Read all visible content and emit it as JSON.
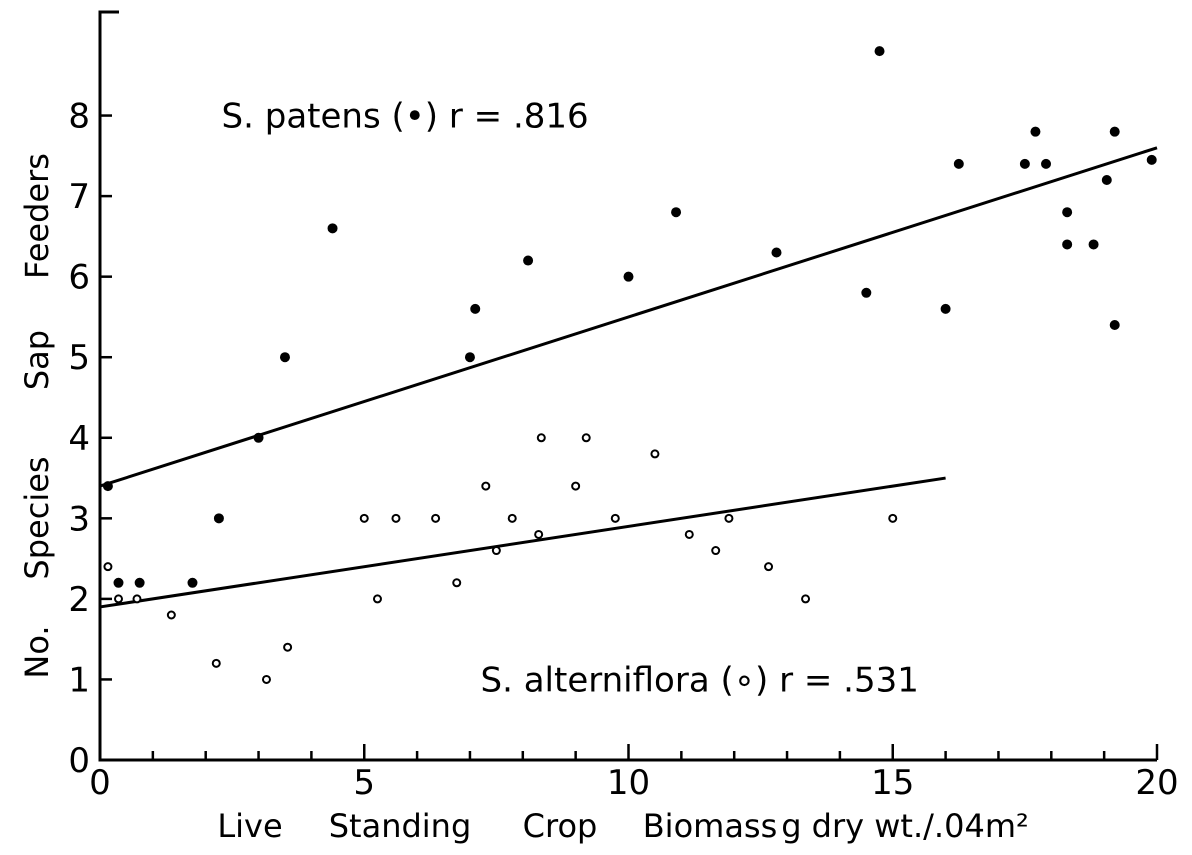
{
  "chart_data": {
    "type": "scatter",
    "title": "",
    "xlabel_parts": [
      "Live",
      "Standing",
      "Crop",
      "Biomass",
      "g dry wt./.04m²"
    ],
    "ylabel_parts": [
      "No.",
      "Species",
      "Sap",
      "Feeders"
    ],
    "xlim": [
      0,
      20
    ],
    "ylim": [
      0,
      9
    ],
    "x_major_ticks": [
      0,
      5,
      10,
      15,
      20
    ],
    "x_minor_ticks": [
      1,
      2,
      3,
      4,
      6,
      7,
      8,
      9,
      11,
      12,
      13,
      14,
      16,
      17,
      18,
      19
    ],
    "y_ticks": [
      0,
      1,
      2,
      3,
      4,
      5,
      6,
      7,
      8
    ],
    "x_tick_labels": [
      "0",
      "5",
      "10",
      "15",
      "20"
    ],
    "y_tick_labels": [
      "0",
      "1",
      "2",
      "3",
      "4",
      "5",
      "6",
      "7",
      "8"
    ],
    "grid": false,
    "annotations": [
      {
        "text": "S. patens (•)  r = .816",
        "x": 2.3,
        "y": 8.0
      },
      {
        "text": "S. alterniflora (∘)  r = .531",
        "x": 7.2,
        "y": 1.0
      }
    ],
    "series": [
      {
        "marker": "filled",
        "points": [
          [
            0.15,
            3.4
          ],
          [
            0.35,
            2.2
          ],
          [
            0.75,
            2.2
          ],
          [
            1.75,
            2.2
          ],
          [
            2.25,
            3.0
          ],
          [
            3.0,
            4.0
          ],
          [
            3.5,
            5.0
          ],
          [
            4.4,
            6.6
          ],
          [
            7.0,
            5.0
          ],
          [
            7.1,
            5.6
          ],
          [
            8.1,
            6.2
          ],
          [
            10.0,
            6.0
          ],
          [
            10.9,
            6.8
          ],
          [
            12.8,
            6.3
          ],
          [
            14.5,
            5.8
          ],
          [
            14.75,
            8.8
          ],
          [
            16.0,
            5.6
          ],
          [
            16.25,
            7.4
          ],
          [
            17.5,
            7.4
          ],
          [
            17.7,
            7.8
          ],
          [
            17.9,
            7.4
          ],
          [
            18.3,
            6.8
          ],
          [
            18.3,
            6.4
          ],
          [
            18.8,
            6.4
          ],
          [
            19.05,
            7.2
          ],
          [
            19.2,
            7.8
          ],
          [
            19.2,
            5.4
          ],
          [
            19.9,
            7.45
          ]
        ],
        "fit": {
          "x": [
            0,
            20
          ],
          "y": [
            3.4,
            7.6
          ]
        }
      },
      {
        "marker": "open",
        "points": [
          [
            0.15,
            2.4
          ],
          [
            0.35,
            2.0
          ],
          [
            0.7,
            2.0
          ],
          [
            1.35,
            1.8
          ],
          [
            2.2,
            1.2
          ],
          [
            3.15,
            1.0
          ],
          [
            3.55,
            1.4
          ],
          [
            5.0,
            3.0
          ],
          [
            5.25,
            2.0
          ],
          [
            5.6,
            3.0
          ],
          [
            6.35,
            3.0
          ],
          [
            6.75,
            2.2
          ],
          [
            7.3,
            3.4
          ],
          [
            7.5,
            2.6
          ],
          [
            7.8,
            3.0
          ],
          [
            8.3,
            2.8
          ],
          [
            8.35,
            4.0
          ],
          [
            9.0,
            3.4
          ],
          [
            9.2,
            4.0
          ],
          [
            9.75,
            3.0
          ],
          [
            10.5,
            3.8
          ],
          [
            11.15,
            2.8
          ],
          [
            11.65,
            2.6
          ],
          [
            11.9,
            3.0
          ],
          [
            12.65,
            2.4
          ],
          [
            13.35,
            2.0
          ],
          [
            15.0,
            3.0
          ]
        ],
        "fit": {
          "x": [
            0,
            16
          ],
          "y": [
            1.9,
            3.5
          ]
        }
      }
    ]
  }
}
